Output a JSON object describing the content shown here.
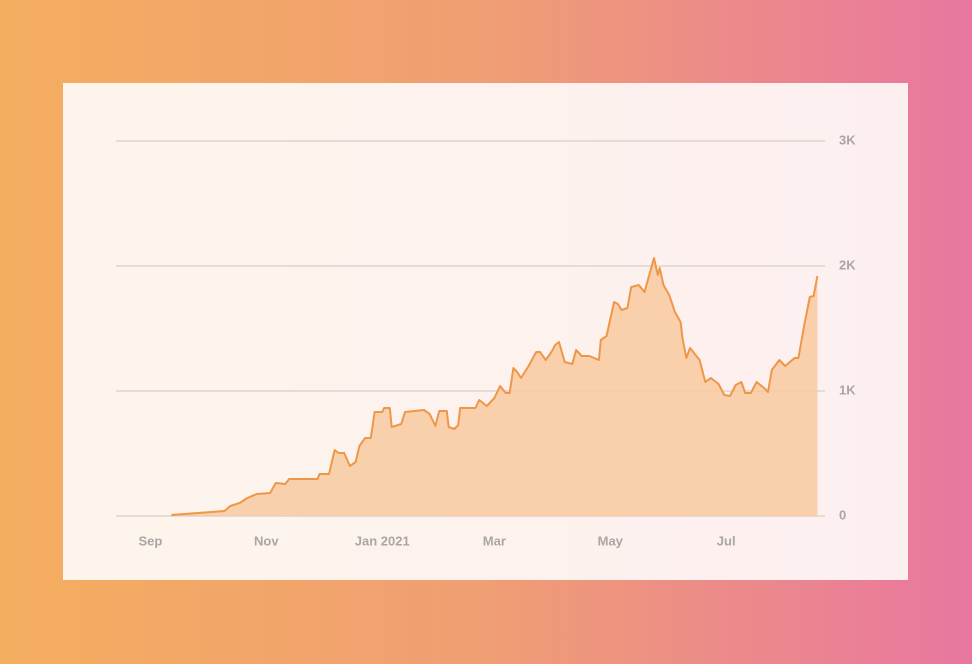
{
  "chart_data": {
    "type": "area",
    "color": "#ef9748",
    "fill": "#f8c9a0",
    "x": [
      11,
      39,
      42,
      47,
      51,
      56,
      63,
      66,
      71,
      73,
      88,
      89,
      94,
      97,
      99,
      102,
      105,
      108,
      110,
      113,
      116,
      118,
      122,
      123,
      126,
      127,
      132,
      134,
      144,
      147,
      150,
      152,
      156,
      157,
      160,
      162,
      163,
      171,
      173,
      177,
      181,
      184,
      187,
      189,
      191,
      193,
      195,
      199,
      203,
      205,
      208,
      211,
      213,
      215,
      218,
      222,
      224,
      227,
      231,
      236,
      237,
      240,
      244,
      246,
      248,
      251,
      253,
      257,
      260,
      265,
      267,
      268,
      270,
      273,
      276,
      279,
      280,
      282,
      284,
      289,
      292,
      295,
      299,
      302,
      305,
      308,
      311,
      313,
      316,
      319,
      323,
      325,
      327,
      331,
      334,
      339,
      341,
      344,
      347,
      349,
      351
    ],
    "values": [
      8,
      40,
      80,
      104,
      144,
      176,
      184,
      264,
      256,
      296,
      296,
      336,
      336,
      528,
      504,
      504,
      400,
      432,
      560,
      624,
      624,
      832,
      832,
      864,
      864,
      712,
      736,
      832,
      848,
      816,
      720,
      840,
      840,
      712,
      696,
      728,
      864,
      864,
      928,
      880,
      944,
      1040,
      984,
      984,
      1184,
      1152,
      1104,
      1200,
      1312,
      1312,
      1248,
      1312,
      1368,
      1392,
      1232,
      1216,
      1328,
      1280,
      1280,
      1248,
      1408,
      1440,
      1712,
      1696,
      1648,
      1664,
      1832,
      1848,
      1792,
      2064,
      1928,
      1984,
      1848,
      1768,
      1632,
      1552,
      1424,
      1264,
      1344,
      1248,
      1072,
      1104,
      1056,
      968,
      960,
      1048,
      1072,
      984,
      984,
      1072,
      1024,
      992,
      1168,
      1248,
      1200,
      1264,
      1264,
      1520,
      1752,
      1760,
      1920
    ],
    "xlim": [
      -16,
      355
    ],
    "xticks": [
      {
        "value": 0,
        "label": "Sep"
      },
      {
        "value": 61,
        "label": "Nov"
      },
      {
        "value": 122,
        "label": "Jan 2021"
      },
      {
        "value": 181,
        "label": "Mar"
      },
      {
        "value": 242,
        "label": "May"
      },
      {
        "value": 303,
        "label": "Jul"
      }
    ],
    "ylim": [
      0,
      3000
    ],
    "yticks": [
      0,
      {
        "value": 1000,
        "label": "1K"
      },
      {
        "value": 2000,
        "label": "2K"
      },
      {
        "value": 3000,
        "label": "3K"
      }
    ],
    "grid": true
  }
}
